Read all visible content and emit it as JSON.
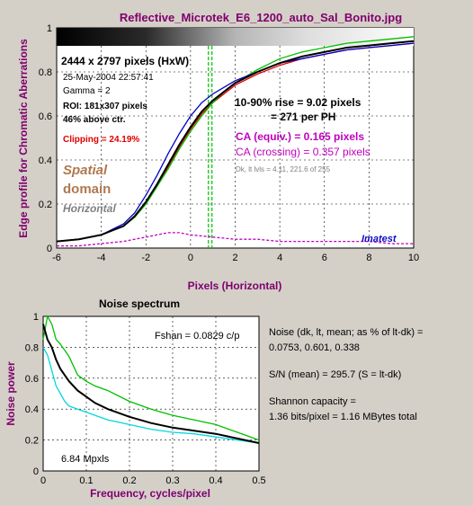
{
  "window": {
    "title": "Reflective_Microtek_E6_1200_auto_Sal_Bonito.jpg"
  },
  "colors": {
    "background": "#d4d0c8",
    "title_text": "#80006e",
    "red": "#e00000",
    "green": "#00c000",
    "blue": "#0000c8",
    "black": "#000000",
    "magenta": "#c000c0",
    "cyan": "#00d8e0",
    "spatial_domain": "#b07850",
    "gray_text": "#808080",
    "imatest": "#1010c0"
  },
  "top_info": {
    "dimensions": "2444 x 2797 pixels (HxW)",
    "date": "25-May-2004 22:57:41",
    "gamma": "Gamma = 2",
    "roi": "ROI: 181x307 pixels",
    "above_ctr": "46% above ctr.",
    "clipping": "Clipping = 24.19%",
    "spatial": "Spatial",
    "domain": "domain",
    "horizontal": "Horizontal",
    "rise": "10-90% rise = 9.02 pixels",
    "per_ph": "= 271 per PH",
    "ca_equiv": "CA (equiv.) = 0.165 pixels",
    "ca_crossing": "CA (crossing) = 0.357 pixels",
    "dk_lt": "Dk, lt lvls = 4.11, 221.6 of 255",
    "imatest": "Imatest"
  },
  "noise_info": {
    "fshan": "Fshan = 0.0829 c/p",
    "mpxls": "6.84 Mpxls",
    "noise_line1": "Noise (dk, lt, mean; as % of lt-dk) =",
    "noise_line2": "0.0753,  0.601,  0.338",
    "sn": "S/N (mean) = 295.7    (S = lt-dk)",
    "shannon_line1": "Shannon capacity =",
    "shannon_line2": "1.36 bits/pixel = 1.16 MBytes total"
  },
  "chart_data": [
    {
      "type": "line",
      "title": "Reflective_Microtek_E6_1200_auto_Sal_Bonito.jpg",
      "xlabel": "Pixels (Horizontal)",
      "ylabel": "Edge profile for Chromatic Aberrations",
      "xlim": [
        -6,
        10
      ],
      "ylim": [
        0,
        1
      ],
      "xticks": [
        "-6",
        "-4",
        "-2",
        "0",
        "2",
        "4",
        "6",
        "8",
        "10"
      ],
      "yticks": [
        "0",
        "0.2",
        "0.4",
        "0.6",
        "0.8",
        "1"
      ],
      "grid": true,
      "vline_x": 0.8,
      "series": [
        {
          "color": "red",
          "x": [
            -6,
            -5,
            -4,
            -3,
            -2.5,
            -2,
            -1.5,
            -1,
            -0.5,
            0,
            0.5,
            1,
            1.5,
            2,
            3,
            4,
            5,
            6,
            7,
            8,
            9,
            10
          ],
          "y": [
            0.03,
            0.04,
            0.06,
            0.1,
            0.14,
            0.2,
            0.28,
            0.37,
            0.46,
            0.54,
            0.61,
            0.66,
            0.7,
            0.74,
            0.79,
            0.83,
            0.86,
            0.88,
            0.9,
            0.91,
            0.92,
            0.93
          ]
        },
        {
          "color": "green",
          "x": [
            -6,
            -5,
            -4,
            -3,
            -2.5,
            -2,
            -1.5,
            -1,
            -0.5,
            0,
            0.5,
            1,
            1.5,
            2,
            3,
            4,
            5,
            6,
            7,
            8,
            9,
            10
          ],
          "y": [
            0.03,
            0.04,
            0.06,
            0.1,
            0.14,
            0.2,
            0.28,
            0.36,
            0.45,
            0.53,
            0.6,
            0.66,
            0.71,
            0.75,
            0.81,
            0.86,
            0.89,
            0.91,
            0.93,
            0.94,
            0.95,
            0.96
          ]
        },
        {
          "color": "blue",
          "x": [
            -6,
            -5,
            -4,
            -3,
            -2.5,
            -2,
            -1.5,
            -1,
            -0.5,
            0,
            0.5,
            1,
            1.5,
            2,
            3,
            4,
            5,
            6,
            7,
            8,
            9,
            10
          ],
          "y": [
            0.03,
            0.04,
            0.06,
            0.11,
            0.16,
            0.24,
            0.33,
            0.43,
            0.52,
            0.6,
            0.66,
            0.7,
            0.73,
            0.76,
            0.8,
            0.84,
            0.86,
            0.88,
            0.9,
            0.91,
            0.92,
            0.93
          ]
        },
        {
          "color": "black",
          "x": [
            -6,
            -5,
            -4,
            -3,
            -2.5,
            -2,
            -1.5,
            -1,
            -0.5,
            0,
            0.5,
            1,
            1.5,
            2,
            3,
            4,
            5,
            6,
            7,
            8,
            9,
            10
          ],
          "y": [
            0.03,
            0.04,
            0.06,
            0.1,
            0.145,
            0.21,
            0.29,
            0.38,
            0.47,
            0.55,
            0.62,
            0.67,
            0.71,
            0.75,
            0.8,
            0.84,
            0.87,
            0.89,
            0.91,
            0.92,
            0.93,
            0.94
          ]
        },
        {
          "color": "magenta",
          "dashed": true,
          "x": [
            -6,
            -5,
            -4,
            -3,
            -2,
            -1.5,
            -1,
            -0.5,
            0,
            1,
            2,
            3,
            4,
            5,
            6,
            7,
            8,
            9,
            10
          ],
          "y": [
            0.01,
            0.01,
            0.02,
            0.03,
            0.05,
            0.06,
            0.07,
            0.07,
            0.06,
            0.05,
            0.04,
            0.04,
            0.03,
            0.03,
            0.03,
            0.03,
            0.03,
            0.02,
            0.02
          ]
        }
      ]
    },
    {
      "type": "line",
      "title": "Noise spectrum",
      "xlabel": "Frequency, cycles/pixel",
      "ylabel": "Noise power",
      "xlim": [
        0,
        0.5
      ],
      "ylim": [
        0,
        1
      ],
      "xticks": [
        "0",
        "0.1",
        "0.2",
        "0.3",
        "0.4",
        "0.5"
      ],
      "yticks": [
        "0",
        "0.2",
        "0.4",
        "0.6",
        "0.8",
        "1"
      ],
      "grid": true,
      "series": [
        {
          "color": "green",
          "x": [
            0,
            0.01,
            0.02,
            0.03,
            0.04,
            0.05,
            0.06,
            0.08,
            0.1,
            0.12,
            0.15,
            0.2,
            0.25,
            0.3,
            0.35,
            0.4,
            0.45,
            0.5
          ],
          "y": [
            0.85,
            1.0,
            0.95,
            0.85,
            0.82,
            0.78,
            0.74,
            0.62,
            0.58,
            0.55,
            0.52,
            0.45,
            0.4,
            0.36,
            0.33,
            0.3,
            0.25,
            0.2
          ]
        },
        {
          "color": "cyan",
          "x": [
            0,
            0.01,
            0.02,
            0.03,
            0.04,
            0.05,
            0.06,
            0.08,
            0.1,
            0.12,
            0.15,
            0.2,
            0.25,
            0.3,
            0.35,
            0.4,
            0.45,
            0.5
          ],
          "y": [
            0.8,
            0.75,
            0.65,
            0.55,
            0.5,
            0.45,
            0.42,
            0.4,
            0.38,
            0.36,
            0.33,
            0.3,
            0.27,
            0.25,
            0.24,
            0.22,
            0.2,
            0.18
          ]
        },
        {
          "color": "black",
          "x": [
            0,
            0.01,
            0.02,
            0.03,
            0.04,
            0.05,
            0.06,
            0.08,
            0.1,
            0.12,
            0.15,
            0.2,
            0.25,
            0.3,
            0.35,
            0.4,
            0.45,
            0.5
          ],
          "y": [
            0.95,
            0.85,
            0.8,
            0.72,
            0.66,
            0.62,
            0.58,
            0.52,
            0.48,
            0.44,
            0.4,
            0.35,
            0.31,
            0.28,
            0.26,
            0.24,
            0.21,
            0.18
          ]
        }
      ]
    }
  ]
}
